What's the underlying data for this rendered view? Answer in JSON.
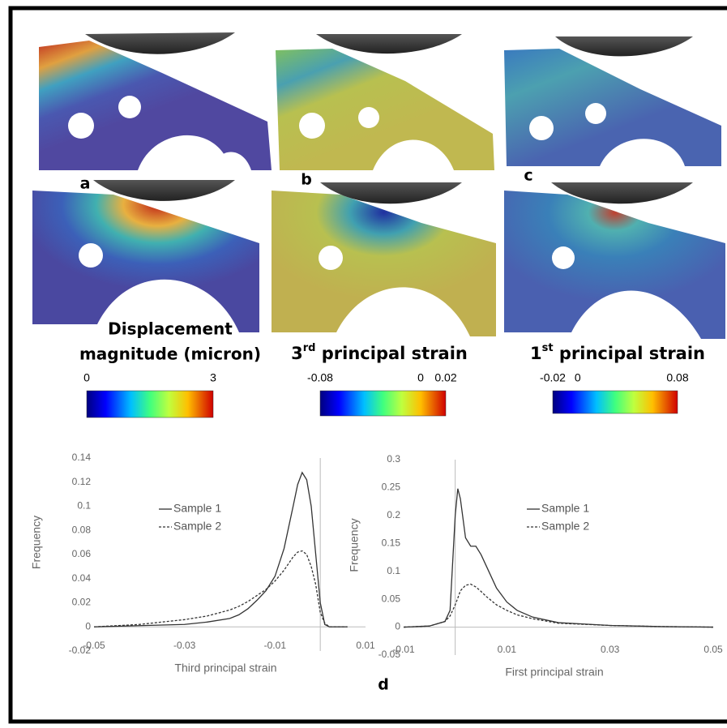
{
  "panels": {
    "labels": [
      "a",
      "b",
      "c",
      "d"
    ],
    "colorbars": [
      {
        "title_lines": [
          "Displacement",
          "magnitude (micron)"
        ],
        "lim": [
          0,
          3
        ],
        "ticks": [
          0,
          3
        ]
      },
      {
        "title": {
          "number": "3",
          "superscript": "rd",
          "text": " principal strain"
        },
        "lim": [
          -0.08,
          0.02
        ],
        "ticks": [
          -0.08,
          0,
          0.02
        ]
      },
      {
        "title": {
          "number": "1",
          "superscript": "st",
          "text": " principal strain"
        },
        "lim": [
          -0.02,
          0.08
        ],
        "ticks": [
          -0.02,
          0,
          0.08
        ]
      }
    ]
  },
  "chart_data": [
    {
      "type": "line",
      "ylabel": "Frequency",
      "xlabel": "Third principal strain",
      "xlim": [
        -0.05,
        0.01
      ],
      "xticks": [
        -0.05,
        -0.03,
        -0.01,
        0.01
      ],
      "ylim": [
        -0.02,
        0.14
      ],
      "yticks": [
        -0.02,
        0,
        0.02,
        0.04,
        0.06,
        0.08,
        0.1,
        0.12,
        0.14
      ],
      "legend": "center",
      "x": [
        -0.05,
        -0.04,
        -0.03,
        -0.025,
        -0.02,
        -0.018,
        -0.016,
        -0.014,
        -0.012,
        -0.01,
        -0.008,
        -0.006,
        -0.005,
        -0.004,
        -0.003,
        -0.002,
        -0.001,
        0,
        0.001,
        0.002,
        0.004,
        0.006
      ],
      "series": [
        {
          "name": "Sample 1",
          "color": "#333333",
          "dash": "solid",
          "values": [
            0,
            0.001,
            0.002,
            0.004,
            0.007,
            0.01,
            0.015,
            0.022,
            0.03,
            0.042,
            0.065,
            0.1,
            0.118,
            0.128,
            0.122,
            0.1,
            0.06,
            0.02,
            0.002,
            0,
            0,
            0
          ]
        },
        {
          "name": "Sample 2",
          "color": "#333333",
          "dash": "dashed",
          "values": [
            0,
            0.002,
            0.006,
            0.009,
            0.014,
            0.017,
            0.021,
            0.026,
            0.031,
            0.038,
            0.047,
            0.058,
            0.062,
            0.063,
            0.06,
            0.05,
            0.035,
            0.012,
            0.003,
            0,
            0,
            0
          ]
        }
      ]
    },
    {
      "type": "line",
      "ylabel": "Frequency",
      "xlabel": "First principal strain",
      "xlim": [
        -0.01,
        0.05
      ],
      "xticks": [
        -0.01,
        0.01,
        0.03,
        0.05
      ],
      "ylim": [
        -0.05,
        0.3
      ],
      "yticks": [
        -0.05,
        0,
        0.05,
        0.1,
        0.15,
        0.2,
        0.25,
        0.3
      ],
      "legend": "center",
      "x": [
        -0.01,
        -0.005,
        -0.002,
        -0.001,
        0,
        0.0005,
        0.001,
        0.002,
        0.003,
        0.004,
        0.005,
        0.006,
        0.008,
        0.01,
        0.012,
        0.015,
        0.02,
        0.03,
        0.04,
        0.05
      ],
      "series": [
        {
          "name": "Sample 1",
          "color": "#333333",
          "dash": "solid",
          "values": [
            0,
            0.002,
            0.01,
            0.03,
            0.2,
            0.248,
            0.23,
            0.16,
            0.145,
            0.145,
            0.13,
            0.11,
            0.07,
            0.045,
            0.03,
            0.018,
            0.008,
            0.003,
            0.001,
            0
          ]
        },
        {
          "name": "Sample 2",
          "color": "#333333",
          "dash": "dashed",
          "values": [
            0,
            0.002,
            0.01,
            0.02,
            0.04,
            0.052,
            0.065,
            0.075,
            0.077,
            0.072,
            0.064,
            0.055,
            0.04,
            0.03,
            0.022,
            0.015,
            0.007,
            0.003,
            0.001,
            0
          ]
        }
      ]
    }
  ]
}
